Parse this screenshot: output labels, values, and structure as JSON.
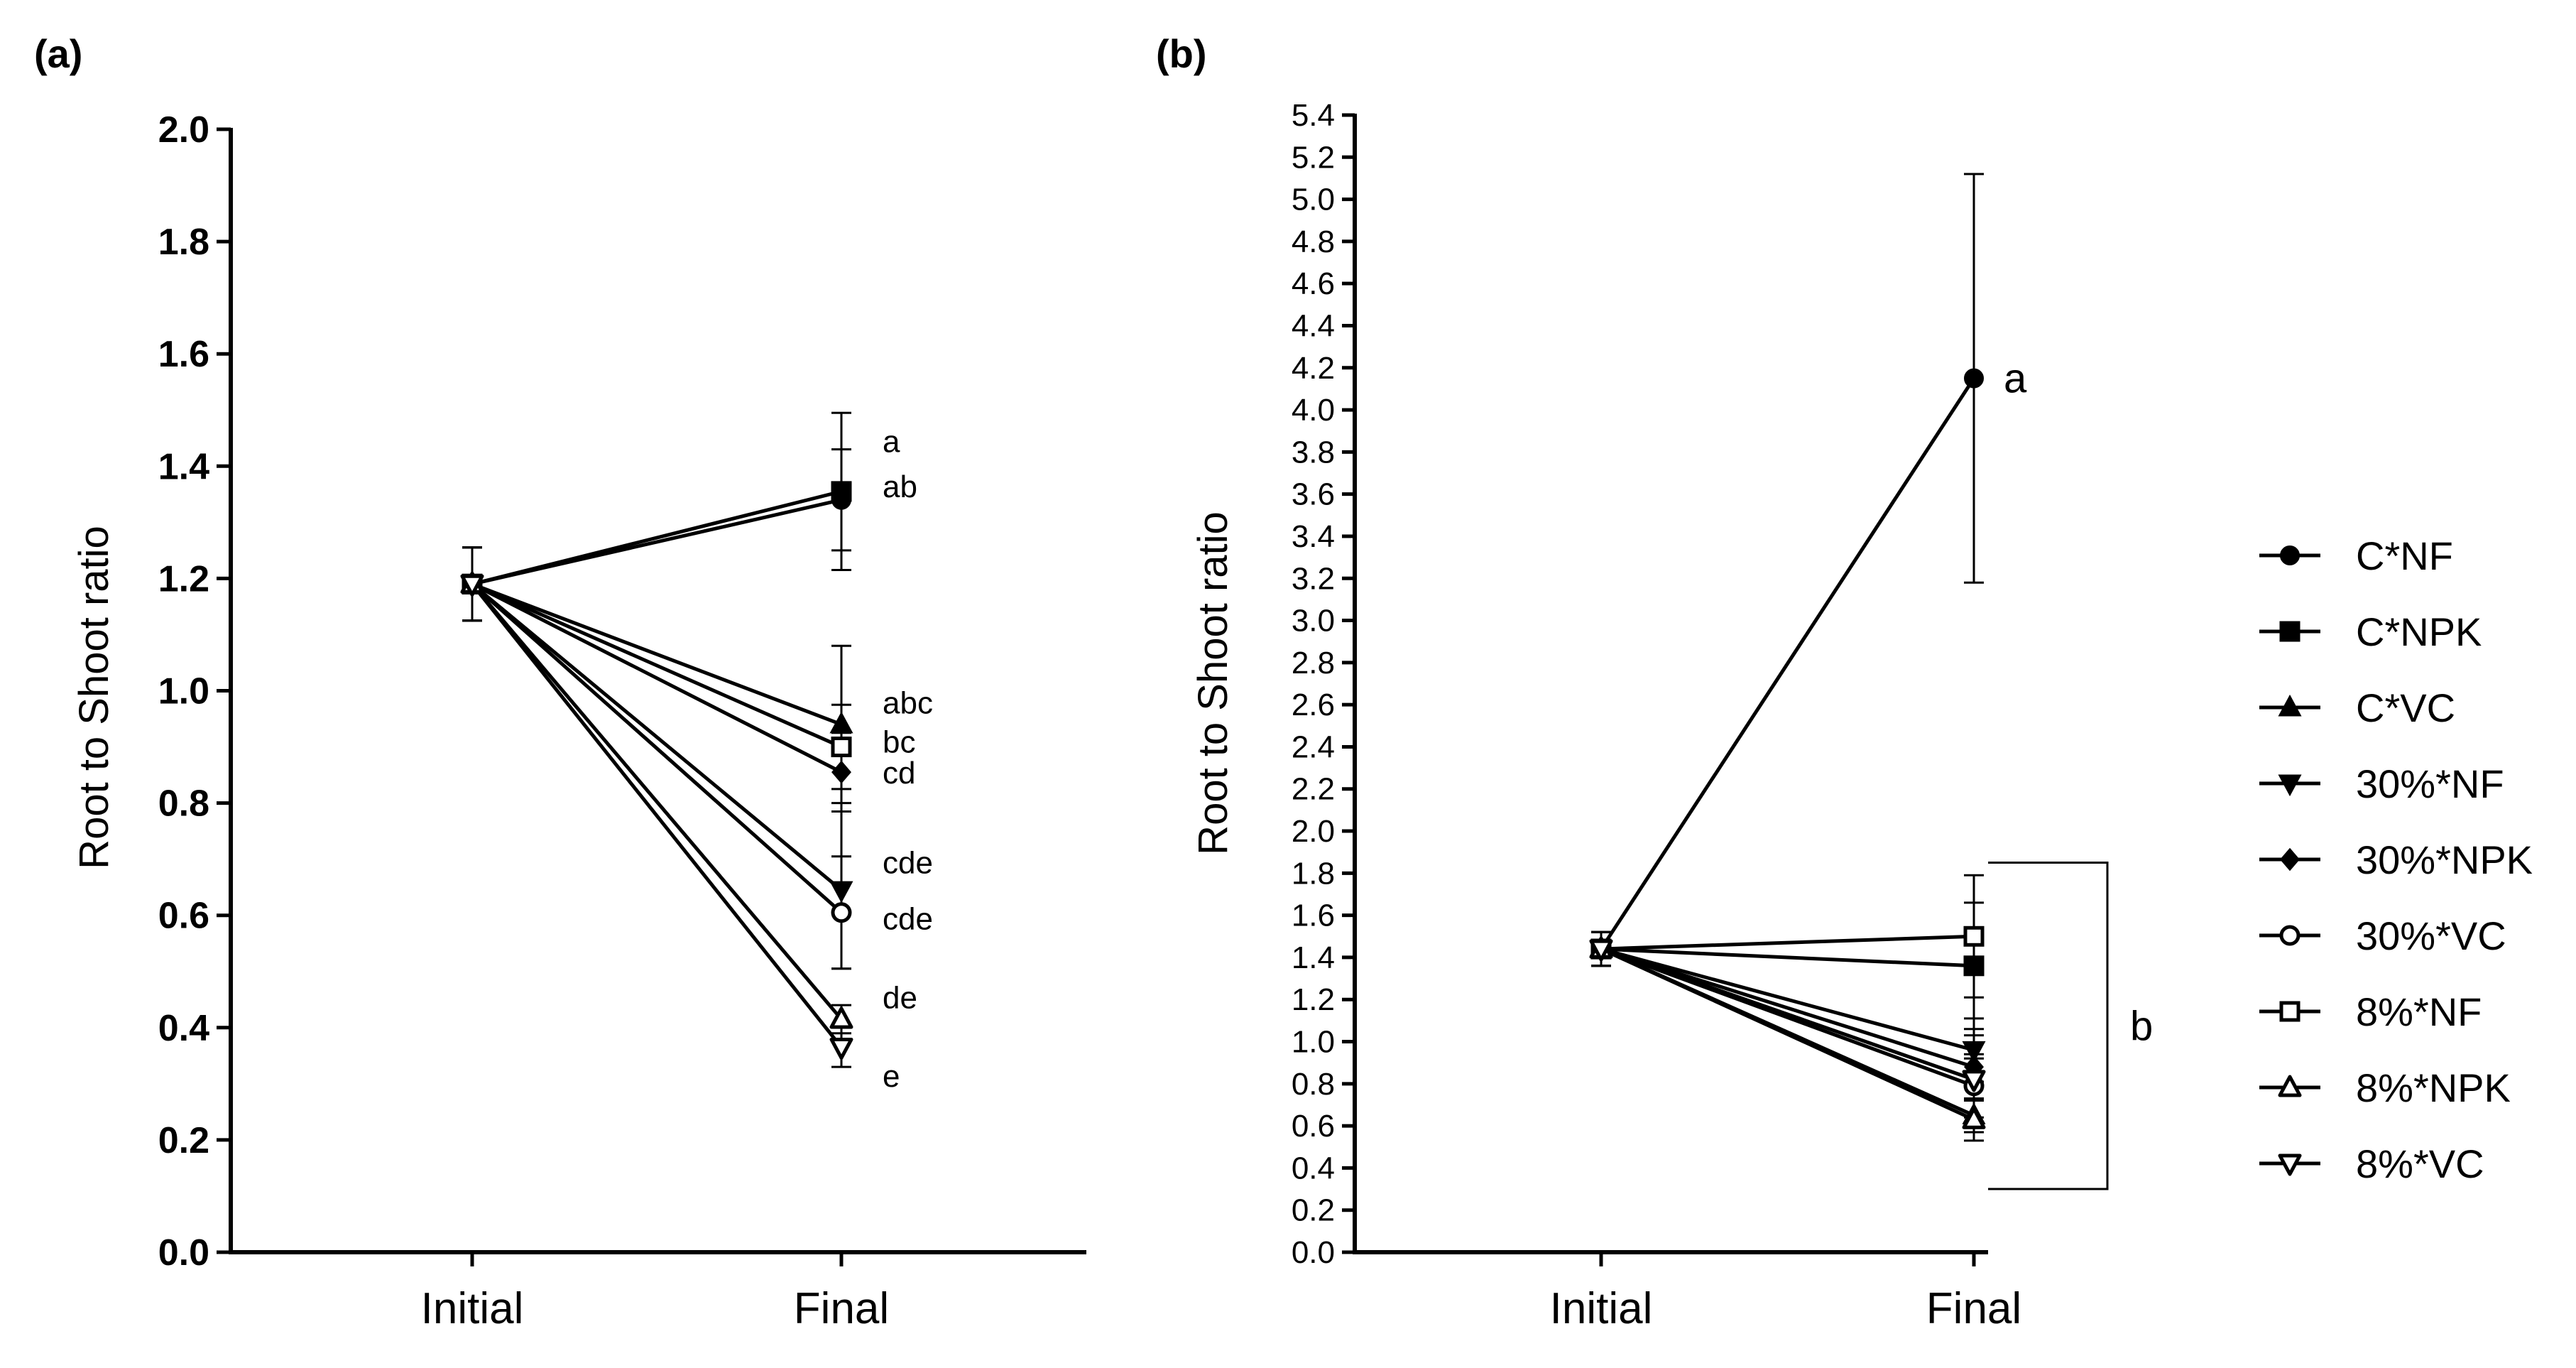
{
  "chart_data": [
    {
      "type": "line",
      "panel_label": "(a)",
      "ylabel": "Root to Shoot ratio",
      "xlabel": "",
      "categories": [
        "Initial",
        "Final"
      ],
      "ylim": [
        0,
        2.0
      ],
      "yticks": [
        "0.0",
        "0.2",
        "0.4",
        "0.6",
        "0.8",
        "1.0",
        "1.2",
        "1.4",
        "1.6",
        "1.8",
        "2.0"
      ],
      "series": [
        {
          "name": "C*NF",
          "marker": "circle-filled",
          "values": [
            1.19,
            1.34
          ],
          "err": [
            0.065,
            0.09
          ],
          "label": "ab"
        },
        {
          "name": "C*NPK",
          "marker": "square-filled",
          "values": [
            1.19,
            1.355
          ],
          "err": [
            0.065,
            0.14
          ],
          "label": "a"
        },
        {
          "name": "C*VC",
          "marker": "triangle-up-filled",
          "values": [
            1.19,
            0.94
          ],
          "err": [
            0.065,
            0.14
          ],
          "label": "abc"
        },
        {
          "name": "30%*NF",
          "marker": "triangle-down-filled",
          "values": [
            1.19,
            0.645
          ],
          "err": [
            0.065,
            0.14
          ],
          "label": "cde"
        },
        {
          "name": "30%*NPK",
          "marker": "diamond-filled",
          "values": [
            1.19,
            0.855
          ],
          "err": [
            0.065,
            0.07
          ],
          "label": "cd"
        },
        {
          "name": "30%*VC",
          "marker": "circle-open",
          "values": [
            1.19,
            0.605
          ],
          "err": [
            0.065,
            0.1
          ],
          "label": "cde"
        },
        {
          "name": "8%*NF",
          "marker": "square-open",
          "values": [
            1.19,
            0.9
          ],
          "err": [
            0.065,
            0.075
          ],
          "label": "bc"
        },
        {
          "name": "8%*NPK",
          "marker": "triangle-up-open",
          "values": [
            1.19,
            0.415
          ],
          "err": [
            0.065,
            0.025
          ],
          "label": "de"
        },
        {
          "name": "8%*VC",
          "marker": "triangle-down-open",
          "values": [
            1.19,
            0.365
          ],
          "err": [
            0.065,
            0.035
          ],
          "label": "e"
        }
      ],
      "legend": "none"
    },
    {
      "type": "line",
      "panel_label": "(b)",
      "ylabel": "Root to Shoot ratio",
      "xlabel": "",
      "categories": [
        "Initial",
        "Final"
      ],
      "ylim": [
        0,
        5.4
      ],
      "yticks": [
        "0.0",
        "0.2",
        "0.4",
        "0.6",
        "0.8",
        "1.0",
        "1.2",
        "1.4",
        "1.6",
        "1.8",
        "2.0",
        "2.2",
        "2.4",
        "2.6",
        "2.8",
        "3.0",
        "3.2",
        "3.4",
        "3.6",
        "3.8",
        "4.0",
        "4.2",
        "4.4",
        "4.6",
        "4.8",
        "5.0",
        "5.2",
        "5.4"
      ],
      "series": [
        {
          "name": "C*NF",
          "marker": "circle-filled",
          "values": [
            1.44,
            4.15
          ],
          "err": [
            0.08,
            0.97
          ]
        },
        {
          "name": "C*NPK",
          "marker": "square-filled",
          "values": [
            1.44,
            1.36
          ],
          "err": [
            0.08,
            0.3
          ]
        },
        {
          "name": "C*VC",
          "marker": "triangle-up-filled",
          "values": [
            1.44,
            0.65
          ],
          "err": [
            0.08,
            0.08
          ]
        },
        {
          "name": "30%*NF",
          "marker": "triangle-down-filled",
          "values": [
            1.44,
            0.96
          ],
          "err": [
            0.08,
            0.15
          ]
        },
        {
          "name": "30%*NPK",
          "marker": "diamond-filled",
          "values": [
            1.44,
            0.88
          ],
          "err": [
            0.08,
            0.15
          ]
        },
        {
          "name": "30%*VC",
          "marker": "circle-open",
          "values": [
            1.44,
            0.79
          ],
          "err": [
            0.08,
            0.15
          ]
        },
        {
          "name": "8%*NF",
          "marker": "square-open",
          "values": [
            1.44,
            1.5
          ],
          "err": [
            0.08,
            0.29
          ]
        },
        {
          "name": "8%*NPK",
          "marker": "triangle-up-open",
          "values": [
            1.44,
            0.63
          ],
          "err": [
            0.08,
            0.1
          ]
        },
        {
          "name": "8%*VC",
          "marker": "triangle-down-open",
          "values": [
            1.44,
            0.82
          ],
          "err": [
            0.08,
            0.1
          ]
        }
      ],
      "annotations": {
        "a_label": "a",
        "b_label": "b",
        "bracket_range": [
          0.3,
          1.85
        ]
      },
      "legend": "right"
    }
  ]
}
